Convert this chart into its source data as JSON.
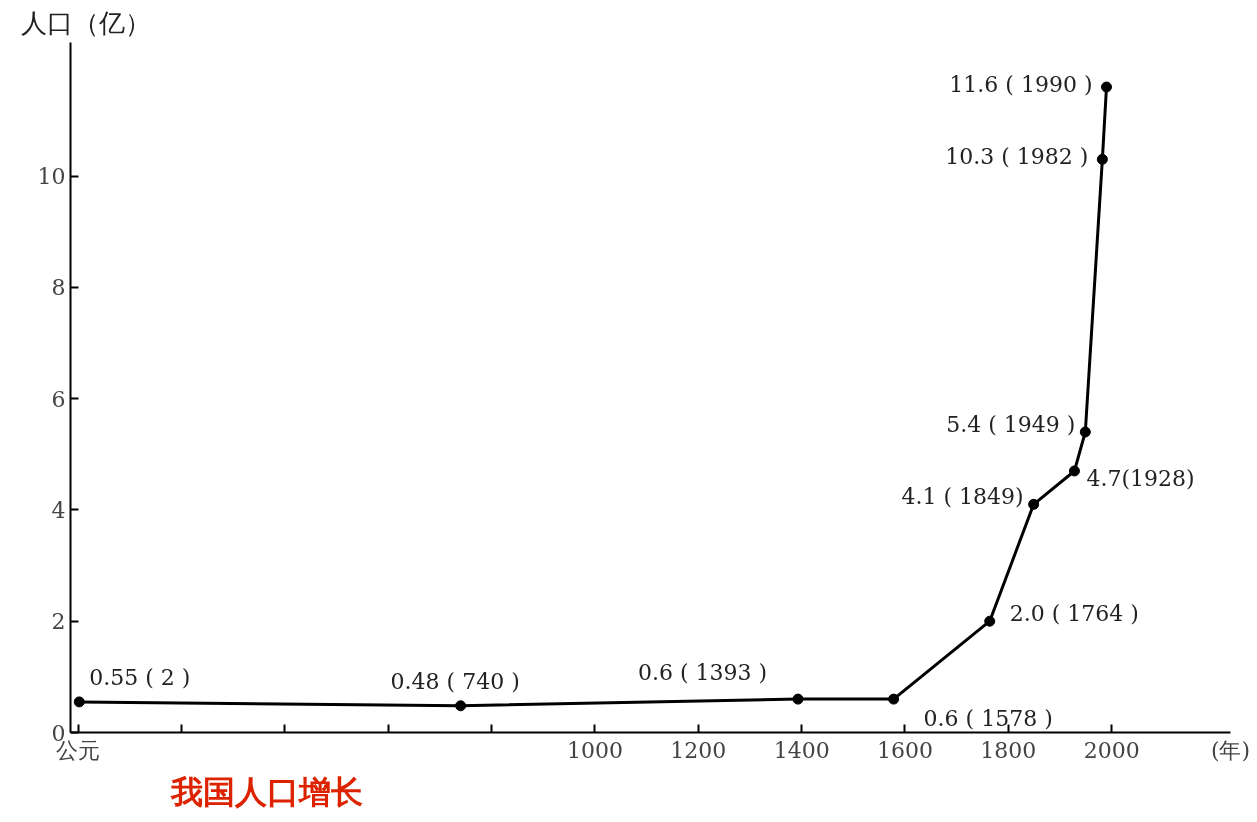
{
  "chart_data": {
    "type": "line",
    "title": "我国人口增长",
    "ylabel": "人口（亿）",
    "xlabel": "(年)",
    "x": [
      2,
      740,
      1393,
      1578,
      1764,
      1849,
      1928,
      1949,
      1982,
      1990
    ],
    "series": [
      {
        "color": "#000000",
        "values": [
          0.55,
          0.48,
          0.6,
          0.6,
          2.0,
          4.1,
          4.7,
          5.4,
          10.3,
          11.6
        ],
        "value_labels": [
          "0.55 ( 2 )",
          "0.48 ( 740 )",
          "0.6 ( 1393 )",
          "0.6 ( 1578 )",
          "2.0 ( 1764 )",
          "4.1 ( 1849)",
          "4.7(1928)",
          "5.4 ( 1949 )",
          "10.3 ( 1982 )",
          "11.6 ( 1990 )"
        ]
      }
    ],
    "xlim": [
      -15,
      2230
    ],
    "ylim": [
      0,
      12.4
    ],
    "xticks": [
      {
        "value": 0,
        "label": "公元"
      },
      {
        "value": 200,
        "label": null
      },
      {
        "value": 400,
        "label": null
      },
      {
        "value": 600,
        "label": null
      },
      {
        "value": 800,
        "label": null
      },
      1000,
      1200,
      1400,
      1600,
      1800,
      2000
    ],
    "yticks": [
      0,
      2,
      4,
      6,
      8,
      10
    ],
    "marker": "circle",
    "line_style": "solid",
    "grid": false
  }
}
